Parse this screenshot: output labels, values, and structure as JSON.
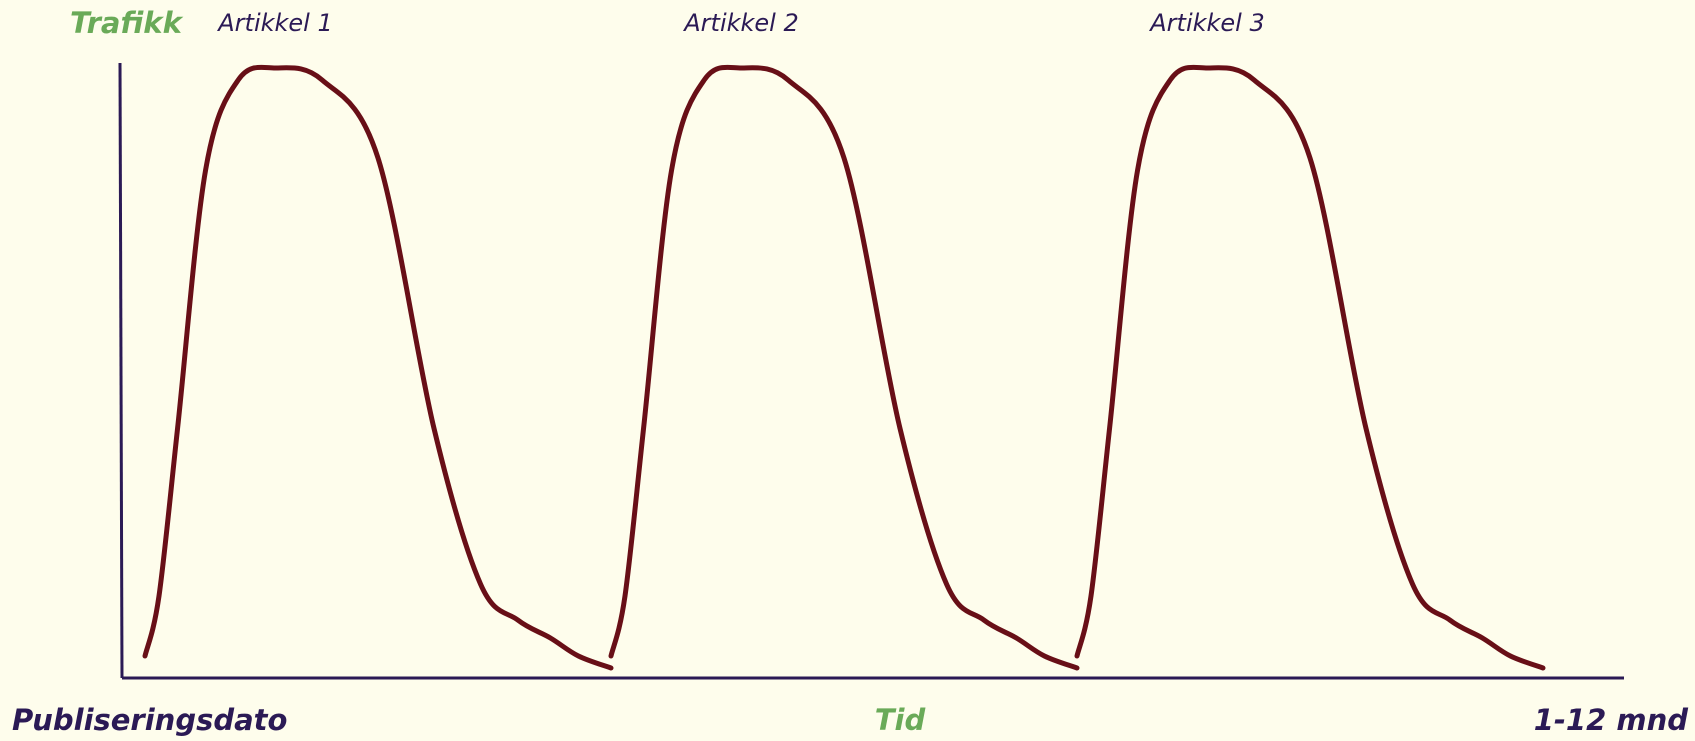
{
  "colors": {
    "background": "#fefdec",
    "axis": "#2b1a55",
    "curve": "#680f17",
    "accent_green": "#6aaa58",
    "text_dark": "#2b1a55"
  },
  "chart_data": {
    "type": "line",
    "ylabel": "Trafikk",
    "xlabel": "Tid",
    "x_start_label": "Publiseringsdato",
    "x_end_label": "1-12 mnd",
    "grid": false,
    "legend": "none",
    "series": [
      {
        "name": "Artikkel 1",
        "x": [
          0,
          0.03,
          0.07,
          0.13,
          0.2,
          0.28,
          0.38,
          0.5,
          0.62,
          0.72,
          0.8,
          0.87,
          0.93,
          1.0
        ],
        "values": [
          0.02,
          0.12,
          0.4,
          0.83,
          0.98,
          1.0,
          0.98,
          0.85,
          0.4,
          0.14,
          0.08,
          0.05,
          0.02,
          0.0
        ]
      },
      {
        "name": "Artikkel 2",
        "x": [
          1.0,
          1.03,
          1.07,
          1.13,
          1.2,
          1.28,
          1.38,
          1.5,
          1.62,
          1.72,
          1.8,
          1.87,
          1.93,
          2.0
        ],
        "values": [
          0.02,
          0.12,
          0.4,
          0.83,
          0.98,
          1.0,
          0.98,
          0.85,
          0.4,
          0.14,
          0.08,
          0.05,
          0.02,
          0.0
        ]
      },
      {
        "name": "Artikkel 3",
        "x": [
          2.0,
          2.03,
          2.07,
          2.13,
          2.2,
          2.28,
          2.38,
          2.5,
          2.62,
          2.72,
          2.8,
          2.87,
          2.93,
          3.0
        ],
        "values": [
          0.02,
          0.12,
          0.4,
          0.83,
          0.98,
          1.0,
          0.98,
          0.85,
          0.4,
          0.14,
          0.08,
          0.05,
          0.02,
          0.0
        ]
      }
    ]
  }
}
